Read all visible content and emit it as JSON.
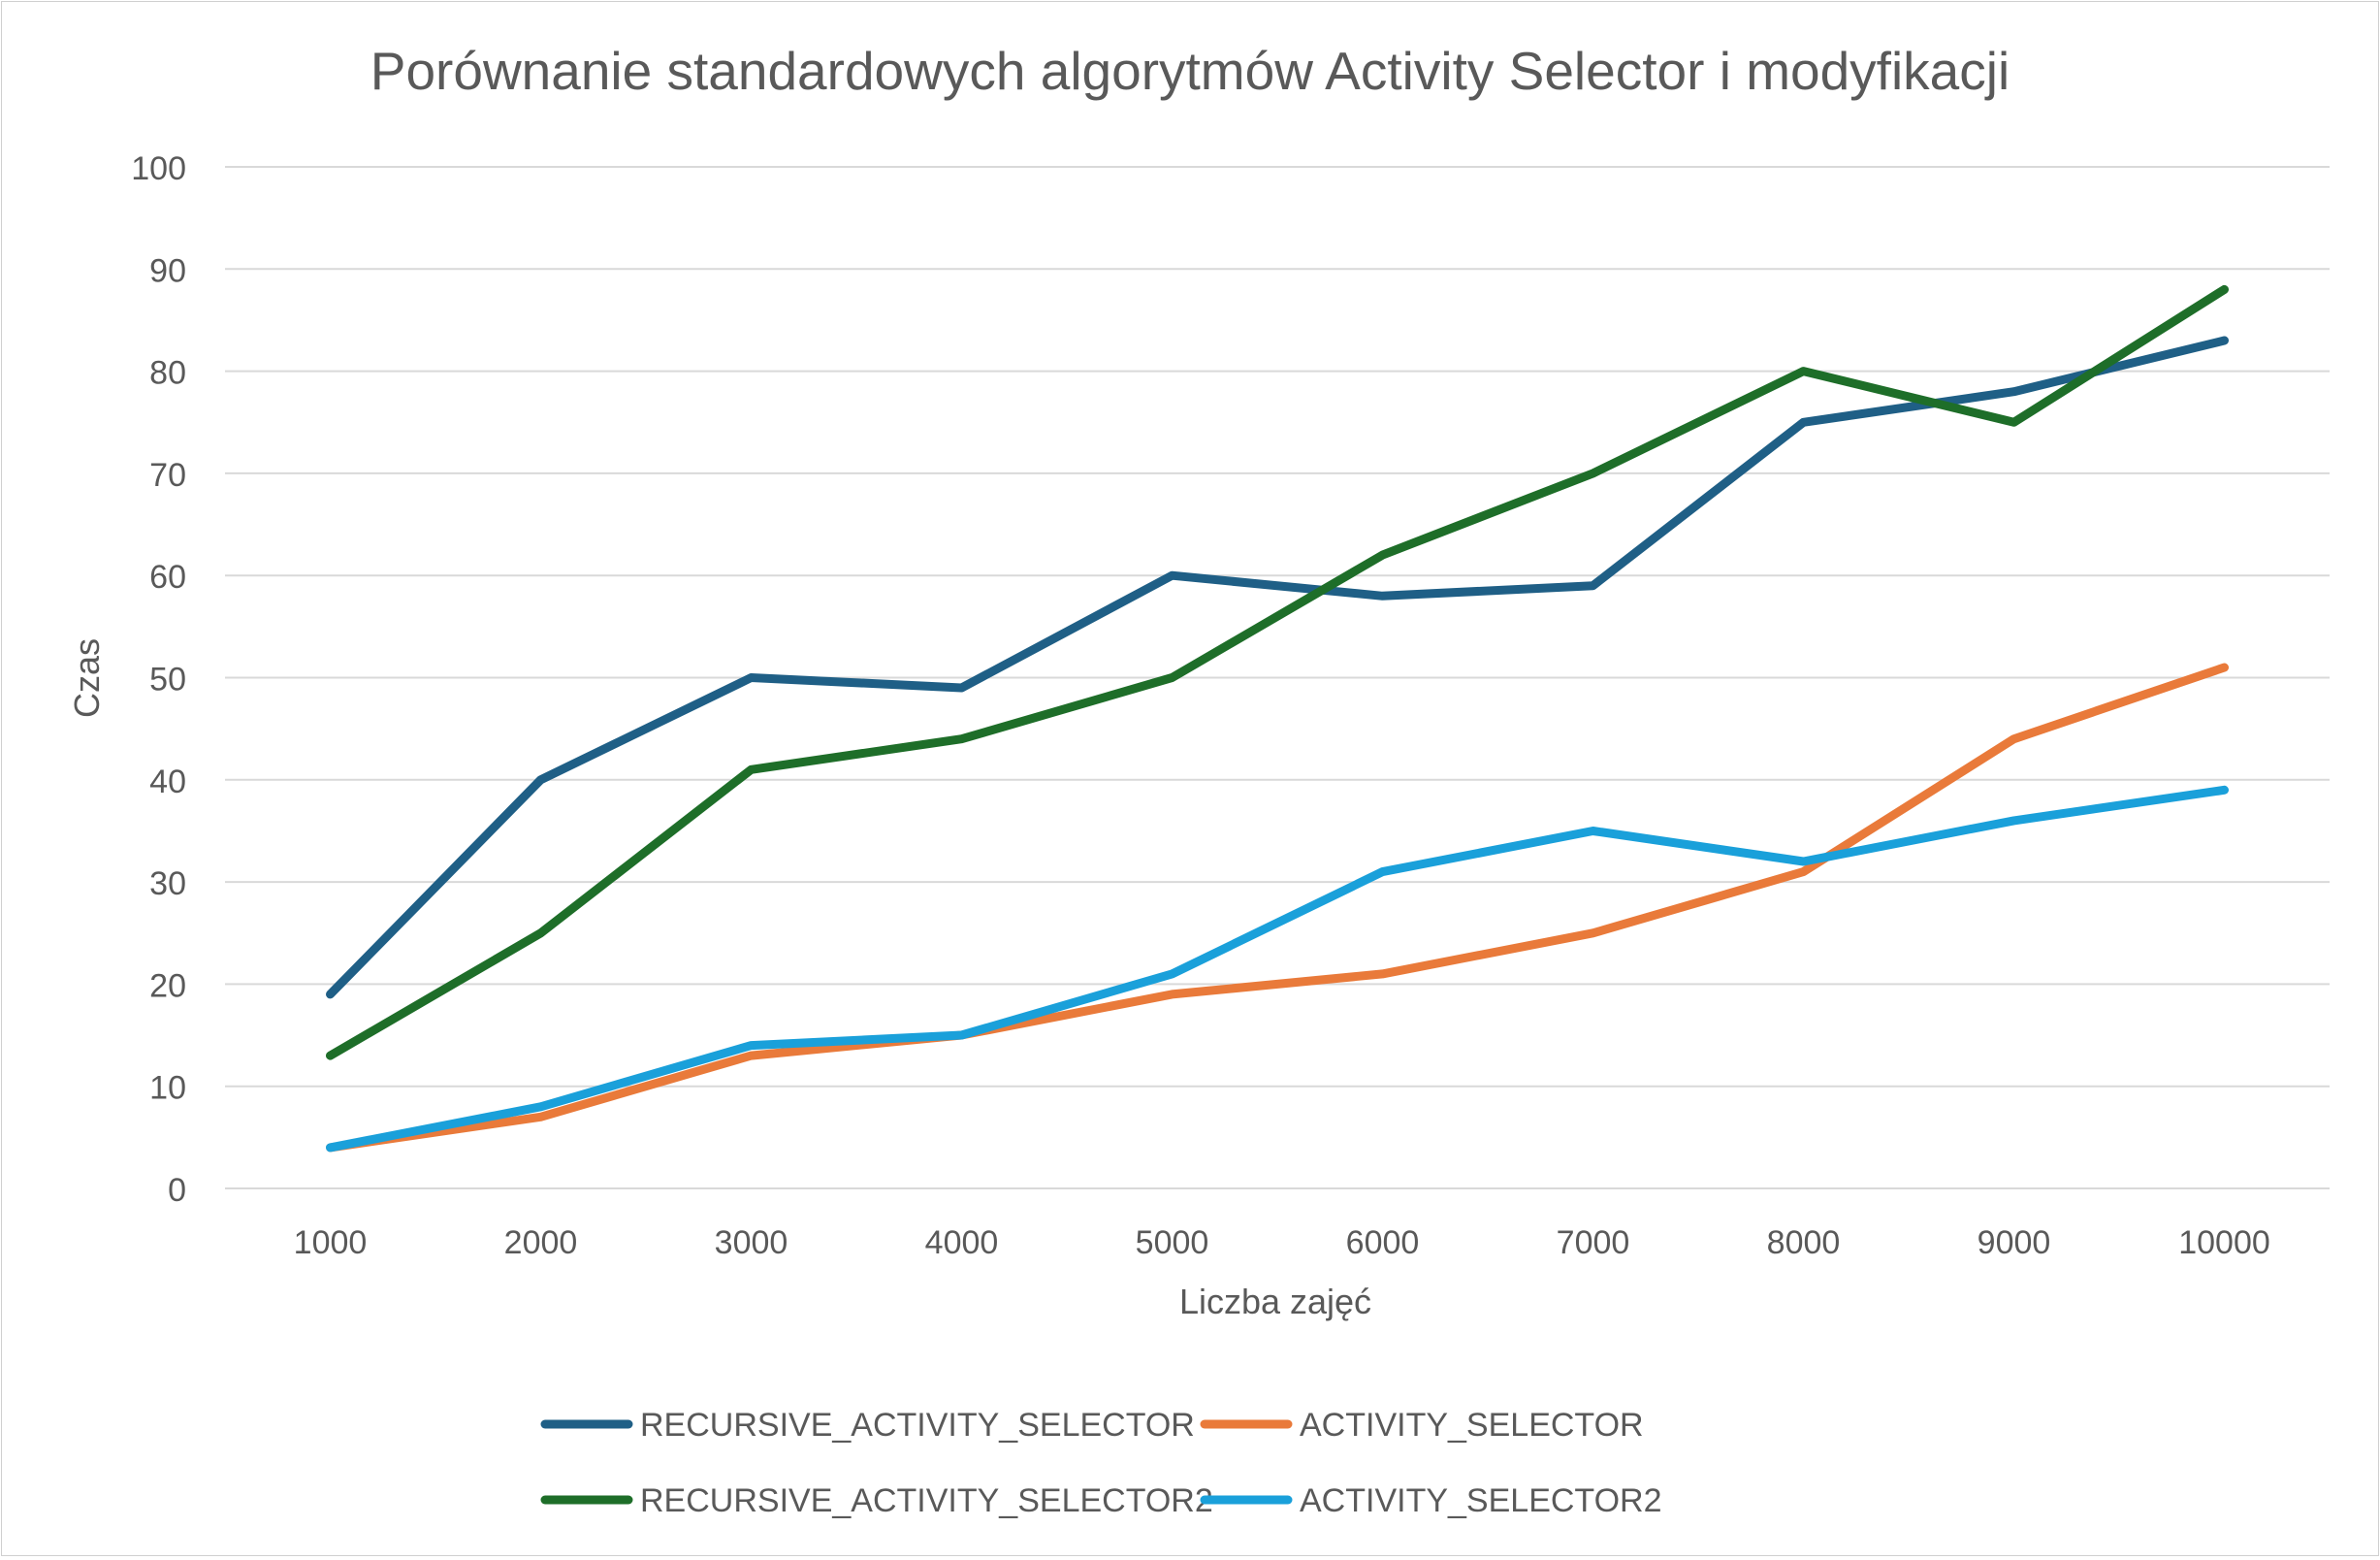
{
  "chart_data": {
    "type": "line",
    "title": "Porównanie standardowych algorytmów Activity Selector i modyfikacji",
    "xlabel": "Liczba zajęć",
    "ylabel": "Czas",
    "categories": [
      "1000",
      "2000",
      "3000",
      "4000",
      "5000",
      "6000",
      "7000",
      "8000",
      "9000",
      "10000"
    ],
    "y_ticks": [
      "0",
      "10",
      "20",
      "30",
      "40",
      "50",
      "60",
      "70",
      "80",
      "90",
      "100"
    ],
    "ylim": [
      0,
      100
    ],
    "grid": "horizontal",
    "legend_position": "bottom",
    "series": [
      {
        "name": "RECURSIVE_ACTIVITY_SELECTOR",
        "color": "#1f5f86",
        "values": [
          19,
          40,
          50,
          49,
          60,
          58,
          59,
          75,
          78,
          83
        ]
      },
      {
        "name": "ACTIVITY_SELECTOR",
        "color": "#e97a3a",
        "values": [
          4,
          7,
          13,
          15,
          19,
          21,
          25,
          31,
          44,
          51
        ]
      },
      {
        "name": "RECURSIVE_ACTIVITY_SELECTOR2",
        "color": "#1e6e29",
        "values": [
          13,
          25,
          41,
          44,
          50,
          62,
          70,
          80,
          75,
          88
        ]
      },
      {
        "name": "ACTIVITY_SELECTOR2",
        "color": "#1aa0da",
        "values": [
          4,
          8,
          14,
          15,
          21,
          31,
          35,
          32,
          36,
          39
        ]
      }
    ]
  }
}
